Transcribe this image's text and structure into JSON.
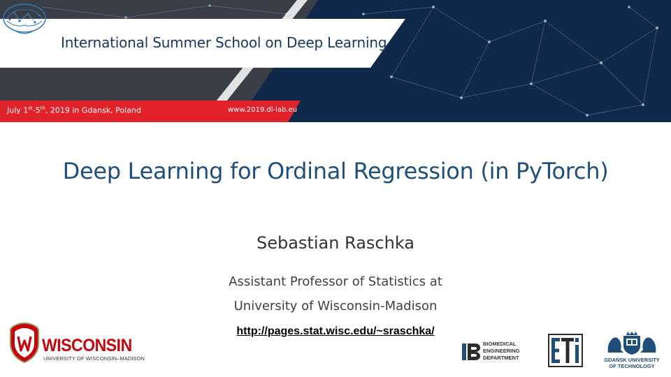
{
  "banner": {
    "school_title": "International Summer School on Deep Learning",
    "date_prefix": "July 1",
    "date_sup1": "st",
    "date_mid": "-5",
    "date_sup2": "th",
    "date_suffix": ", 2019 in Gdansk, Poland",
    "site_url": "www.2019.dl-lab.eu",
    "colors": {
      "navy": "#10294a",
      "red": "#e1222b",
      "dark": "#3a3f47"
    }
  },
  "slide": {
    "title": "Deep Learning for Ordinal Regression (in PyTorch)",
    "author": "Sebastian Raschka",
    "affiliation_line1": "Assistant Professor of Statistics at",
    "affiliation_line2": "University of Wisconsin-Madison",
    "homepage": "http://pages.stat.wisc.edu/~sraschka/"
  },
  "logos": {
    "uw_word": "WISCONSIN",
    "uw_sub": "UNIVERSITY OF WISCONSIN–MADISON",
    "bme_lines": [
      "BIOMEDICAL",
      "ENGINEERING",
      "DEPARTMENT"
    ],
    "eti_text": "ETI",
    "pg_line1": "GDAŃSK UNIVERSITY",
    "pg_line2": "OF TECHNOLOGY"
  }
}
